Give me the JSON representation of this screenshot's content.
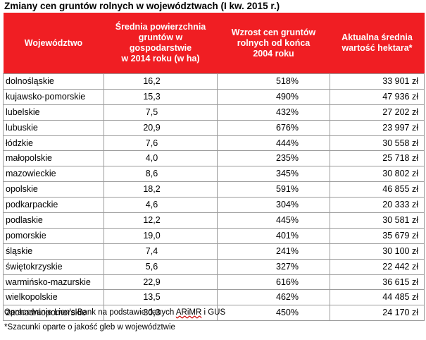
{
  "title": "Zmiany cen gruntów rolnych w województwach  (I kw. 2015 r.)",
  "headers": [
    [
      "Województwo"
    ],
    [
      "Średnia powierzchnia",
      "gruntów w gospodarstwie",
      "w 2014 roku (w ha)"
    ],
    [
      "Wzrost cen gruntów",
      "rolnych od końca",
      "2004 roku"
    ],
    [
      "Aktualna średnia",
      "wartość hektara*"
    ]
  ],
  "rows": [
    {
      "name": "dolnośląskie",
      "area": "16,2",
      "growth": "518%",
      "price": "33 901 zł"
    },
    {
      "name": "kujawsko-pomorskie",
      "area": "15,3",
      "growth": "490%",
      "price": "47 936 zł"
    },
    {
      "name": "lubelskie",
      "area": "7,5",
      "growth": "432%",
      "price": "27 202 zł"
    },
    {
      "name": "lubuskie",
      "area": "20,9",
      "growth": "676%",
      "price": "23 997 zł"
    },
    {
      "name": "łódzkie",
      "area": "7,6",
      "growth": "444%",
      "price": "30 558 zł"
    },
    {
      "name": "małopolskie",
      "area": "4,0",
      "growth": "235%",
      "price": "25 718 zł"
    },
    {
      "name": "mazowieckie",
      "area": "8,6",
      "growth": "345%",
      "price": "30 802 zł"
    },
    {
      "name": "opolskie",
      "area": "18,2",
      "growth": "591%",
      "price": "46 855 zł"
    },
    {
      "name": "podkarpackie",
      "area": "4,6",
      "growth": "304%",
      "price": "20 333 zł"
    },
    {
      "name": "podlaskie",
      "area": "12,2",
      "growth": "445%",
      "price": "30 581 zł"
    },
    {
      "name": "pomorskie",
      "area": "19,0",
      "growth": "401%",
      "price": "35 679 zł"
    },
    {
      "name": "śląskie",
      "area": "7,4",
      "growth": "241%",
      "price": "30 100 zł"
    },
    {
      "name": "świętokrzyskie",
      "area": "5,6",
      "growth": "327%",
      "price": "22 442 zł"
    },
    {
      "name": "warmińsko-mazurskie",
      "area": "22,9",
      "growth": "616%",
      "price": "36 615 zł"
    },
    {
      "name": "wielkopolskie",
      "area": "13,5",
      "growth": "462%",
      "price": "44 485 zł"
    },
    {
      "name": "zachodniopomorskie",
      "area": "30,3",
      "growth": "450%",
      "price": "24 170 zł"
    }
  ],
  "notes": {
    "source_prefix": "Opracowanie Lion's Bank na podstawie danych ",
    "source_arimr": "ARiMR",
    "source_suffix": " i GUS",
    "footnote": "*Szacunki oparte o jakość gleb w województwie"
  }
}
